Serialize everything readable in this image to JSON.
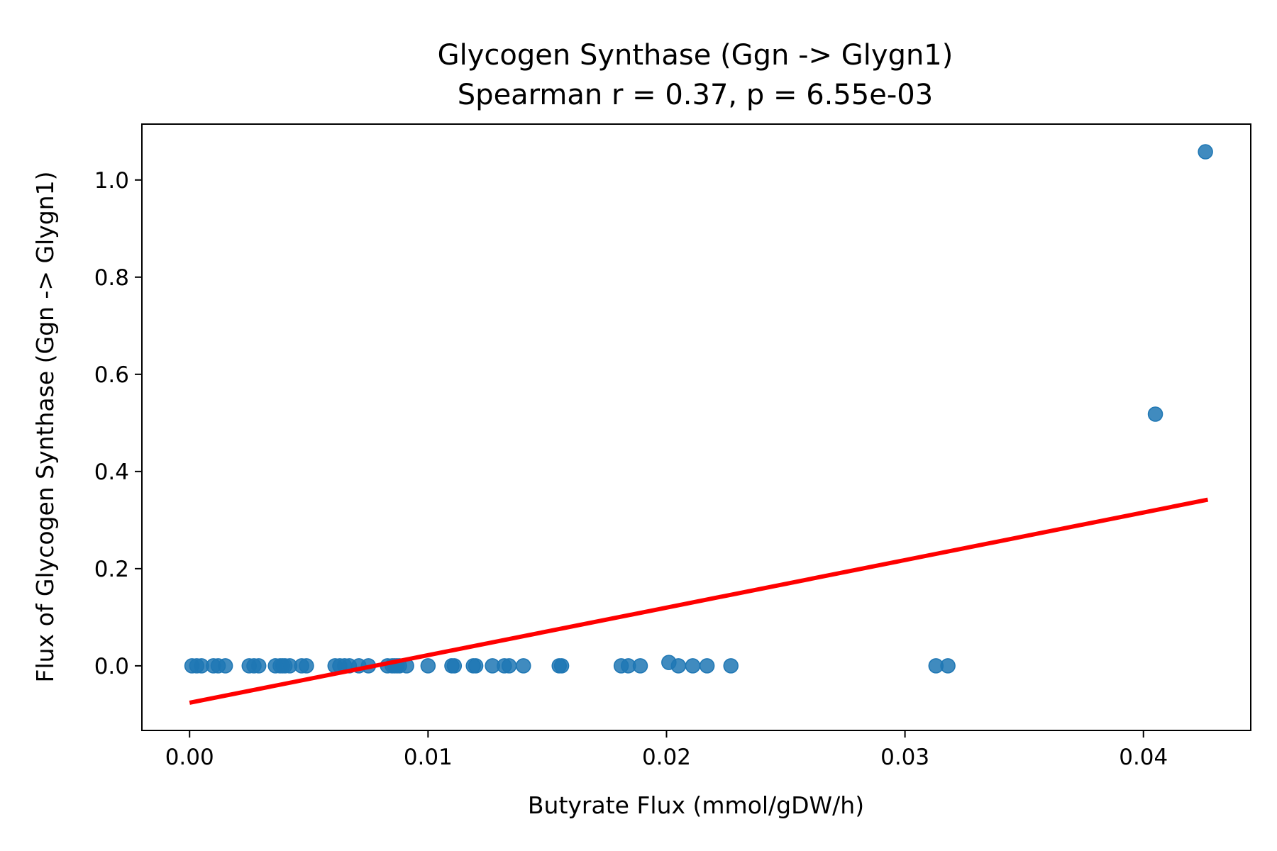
{
  "chart_data": {
    "type": "scatter",
    "title": "Glycogen Synthase (Ggn -> Glygn1)",
    "subtitle": "Spearman r = 0.37, p = 6.55e-03",
    "xlabel": "Butyrate Flux (mmol/gDW/h)",
    "ylabel": "Flux of Glycogen Synthase (Ggn -> Glygn1)",
    "xlim": [
      -0.002,
      0.0445
    ],
    "ylim": [
      -0.133,
      1.115
    ],
    "xticks": [
      0.0,
      0.01,
      0.02,
      0.03,
      0.04
    ],
    "xtick_labels": [
      "0.00",
      "0.01",
      "0.02",
      "0.03",
      "0.04"
    ],
    "yticks": [
      0.0,
      0.2,
      0.4,
      0.6,
      0.8,
      1.0
    ],
    "ytick_labels": [
      "0.0",
      "0.2",
      "0.4",
      "0.6",
      "0.8",
      "1.0"
    ],
    "grid": false,
    "colors": {
      "points": "#1f77b4",
      "fit_line": "#ff0000"
    },
    "points": [
      {
        "x": 0.0001,
        "y": 0.0
      },
      {
        "x": 0.0003,
        "y": 0.0
      },
      {
        "x": 0.0005,
        "y": 0.0
      },
      {
        "x": 0.001,
        "y": 0.0
      },
      {
        "x": 0.0012,
        "y": 0.0
      },
      {
        "x": 0.0015,
        "y": 0.0
      },
      {
        "x": 0.0025,
        "y": 0.0
      },
      {
        "x": 0.0027,
        "y": 0.0
      },
      {
        "x": 0.0029,
        "y": 0.0
      },
      {
        "x": 0.0036,
        "y": 0.0
      },
      {
        "x": 0.0038,
        "y": 0.0
      },
      {
        "x": 0.0039,
        "y": 0.0
      },
      {
        "x": 0.004,
        "y": 0.0
      },
      {
        "x": 0.0042,
        "y": 0.0
      },
      {
        "x": 0.0047,
        "y": 0.0
      },
      {
        "x": 0.0049,
        "y": 0.0
      },
      {
        "x": 0.0061,
        "y": 0.0
      },
      {
        "x": 0.0063,
        "y": 0.0
      },
      {
        "x": 0.0065,
        "y": 0.0
      },
      {
        "x": 0.0067,
        "y": 0.0
      },
      {
        "x": 0.0071,
        "y": 0.0
      },
      {
        "x": 0.0075,
        "y": 0.0
      },
      {
        "x": 0.0083,
        "y": 0.0
      },
      {
        "x": 0.0085,
        "y": 0.0
      },
      {
        "x": 0.0086,
        "y": 0.0
      },
      {
        "x": 0.0087,
        "y": 0.0
      },
      {
        "x": 0.0088,
        "y": 0.0
      },
      {
        "x": 0.0091,
        "y": 0.0
      },
      {
        "x": 0.01,
        "y": 0.0
      },
      {
        "x": 0.011,
        "y": 0.0
      },
      {
        "x": 0.0111,
        "y": 0.0
      },
      {
        "x": 0.0119,
        "y": 0.0
      },
      {
        "x": 0.012,
        "y": 0.0
      },
      {
        "x": 0.0127,
        "y": 0.0
      },
      {
        "x": 0.0132,
        "y": 0.0
      },
      {
        "x": 0.0134,
        "y": 0.0
      },
      {
        "x": 0.014,
        "y": 0.0
      },
      {
        "x": 0.0155,
        "y": 0.0
      },
      {
        "x": 0.0156,
        "y": 0.0
      },
      {
        "x": 0.0181,
        "y": 0.0
      },
      {
        "x": 0.0184,
        "y": 0.0
      },
      {
        "x": 0.0189,
        "y": 0.0
      },
      {
        "x": 0.0201,
        "y": 0.007
      },
      {
        "x": 0.0205,
        "y": 0.0
      },
      {
        "x": 0.0211,
        "y": 0.0
      },
      {
        "x": 0.0217,
        "y": 0.0
      },
      {
        "x": 0.0227,
        "y": 0.0
      },
      {
        "x": 0.0313,
        "y": 0.0
      },
      {
        "x": 0.0318,
        "y": 0.0
      },
      {
        "x": 0.0405,
        "y": 0.518
      },
      {
        "x": 0.0426,
        "y": 1.058
      }
    ],
    "fit_line": {
      "x": [
        0.0,
        0.0427
      ],
      "y": [
        -0.076,
        0.342
      ]
    }
  }
}
